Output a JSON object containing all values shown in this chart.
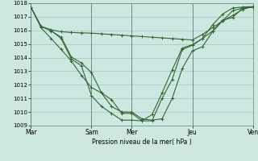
{
  "xlabel": "Pression niveau de la mer( hPa )",
  "bg_color": "#cce8e0",
  "grid_color": "#99bbbb",
  "line_color": "#336633",
  "ylim": [
    1009,
    1018
  ],
  "yticks": [
    1009,
    1010,
    1011,
    1012,
    1013,
    1014,
    1015,
    1016,
    1017,
    1018
  ],
  "xtick_labels": [
    "Mar",
    "Sam",
    "Mer",
    "Jeu",
    "Ven"
  ],
  "xtick_pos": [
    0,
    30,
    50,
    80,
    110
  ],
  "vlines_x": [
    0,
    30,
    50,
    80,
    110
  ],
  "line1_x": [
    0,
    5,
    10,
    15,
    20,
    25,
    30,
    35,
    40,
    45,
    50,
    55,
    60,
    65,
    70,
    75,
    80,
    85,
    90,
    95,
    100,
    105,
    110
  ],
  "line1_y": [
    1017.7,
    1016.3,
    1016.05,
    1015.9,
    1015.85,
    1015.82,
    1015.8,
    1015.75,
    1015.7,
    1015.65,
    1015.6,
    1015.55,
    1015.5,
    1015.45,
    1015.4,
    1015.35,
    1015.3,
    1015.7,
    1016.2,
    1016.7,
    1017.1,
    1017.55,
    1017.75
  ],
  "line2_x": [
    0,
    5,
    10,
    15,
    20,
    25,
    30,
    35,
    40,
    45,
    50,
    55,
    60,
    65,
    70,
    75,
    80,
    85,
    90,
    95,
    100,
    105,
    110
  ],
  "line2_y": [
    1017.7,
    1016.3,
    1015.95,
    1015.5,
    1014.05,
    1013.6,
    1012.9,
    1011.4,
    1010.4,
    1010.0,
    1010.0,
    1009.5,
    1009.4,
    1009.5,
    1011.0,
    1013.2,
    1014.5,
    1014.8,
    1015.9,
    1016.7,
    1017.45,
    1017.65,
    1017.7
  ],
  "line3_x": [
    10,
    15,
    20,
    25,
    30,
    35,
    40,
    45,
    50,
    55,
    60,
    65,
    70,
    75,
    80,
    85,
    90,
    95,
    100,
    105,
    110
  ],
  "line3_y": [
    1016.0,
    1015.4,
    1013.9,
    1013.4,
    1011.2,
    1010.4,
    1009.9,
    1009.4,
    1009.4,
    1009.35,
    1009.8,
    1011.4,
    1013.1,
    1014.7,
    1014.95,
    1015.4,
    1015.95,
    1016.75,
    1016.95,
    1017.65,
    1017.7
  ],
  "line4_x": [
    0,
    5,
    10,
    15,
    20,
    25,
    30,
    35,
    40,
    45,
    50,
    55,
    60,
    65,
    70,
    75,
    80,
    85,
    90,
    95,
    100,
    105,
    110
  ],
  "line4_y": [
    1017.7,
    1016.2,
    1015.4,
    1014.6,
    1013.75,
    1012.7,
    1011.8,
    1011.4,
    1010.9,
    1009.9,
    1009.9,
    1009.35,
    1009.35,
    1011.0,
    1012.4,
    1014.6,
    1014.9,
    1015.4,
    1016.4,
    1017.2,
    1017.65,
    1017.72,
    1017.75
  ],
  "figsize": [
    3.2,
    2.0
  ],
  "dpi": 100
}
